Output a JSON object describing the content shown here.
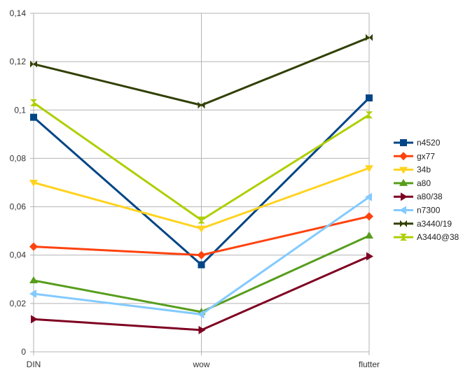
{
  "chart_data": {
    "type": "line",
    "categories": [
      "DIN",
      "wow",
      "flutter"
    ],
    "ylim": [
      0,
      0.14
    ],
    "yticks": [
      "0",
      "0,02",
      "0,04",
      "0,06",
      "0,08",
      "0,1",
      "0,12",
      "0,14"
    ],
    "ytick_values": [
      0,
      0.02,
      0.04,
      0.06,
      0.08,
      0.1,
      0.12,
      0.14
    ],
    "grid": true,
    "legend_position": "right",
    "series": [
      {
        "name": "n4520",
        "values": [
          0.097,
          0.036,
          0.105
        ],
        "color": "#004586",
        "marker": "square"
      },
      {
        "name": "gx77",
        "values": [
          0.0435,
          0.04,
          0.056
        ],
        "color": "#ff420e",
        "marker": "diamond"
      },
      {
        "name": "34b",
        "values": [
          0.07,
          0.051,
          0.076
        ],
        "color": "#ffd320",
        "marker": "triangle-down"
      },
      {
        "name": "a80",
        "values": [
          0.0295,
          0.0165,
          0.048
        ],
        "color": "#579d1c",
        "marker": "triangle-up"
      },
      {
        "name": "a80/38",
        "values": [
          0.0135,
          0.009,
          0.0395
        ],
        "color": "#7e0021",
        "marker": "triangle-right"
      },
      {
        "name": "n7300",
        "values": [
          0.024,
          0.0155,
          0.064
        ],
        "color": "#83caff",
        "marker": "triangle-left"
      },
      {
        "name": "a3440/19",
        "values": [
          0.119,
          0.102,
          0.13
        ],
        "color": "#314004",
        "marker": "bowtie"
      },
      {
        "name": "A3440@38",
        "values": [
          0.103,
          0.0545,
          0.098
        ],
        "color": "#aecf00",
        "marker": "hourglass"
      }
    ]
  }
}
